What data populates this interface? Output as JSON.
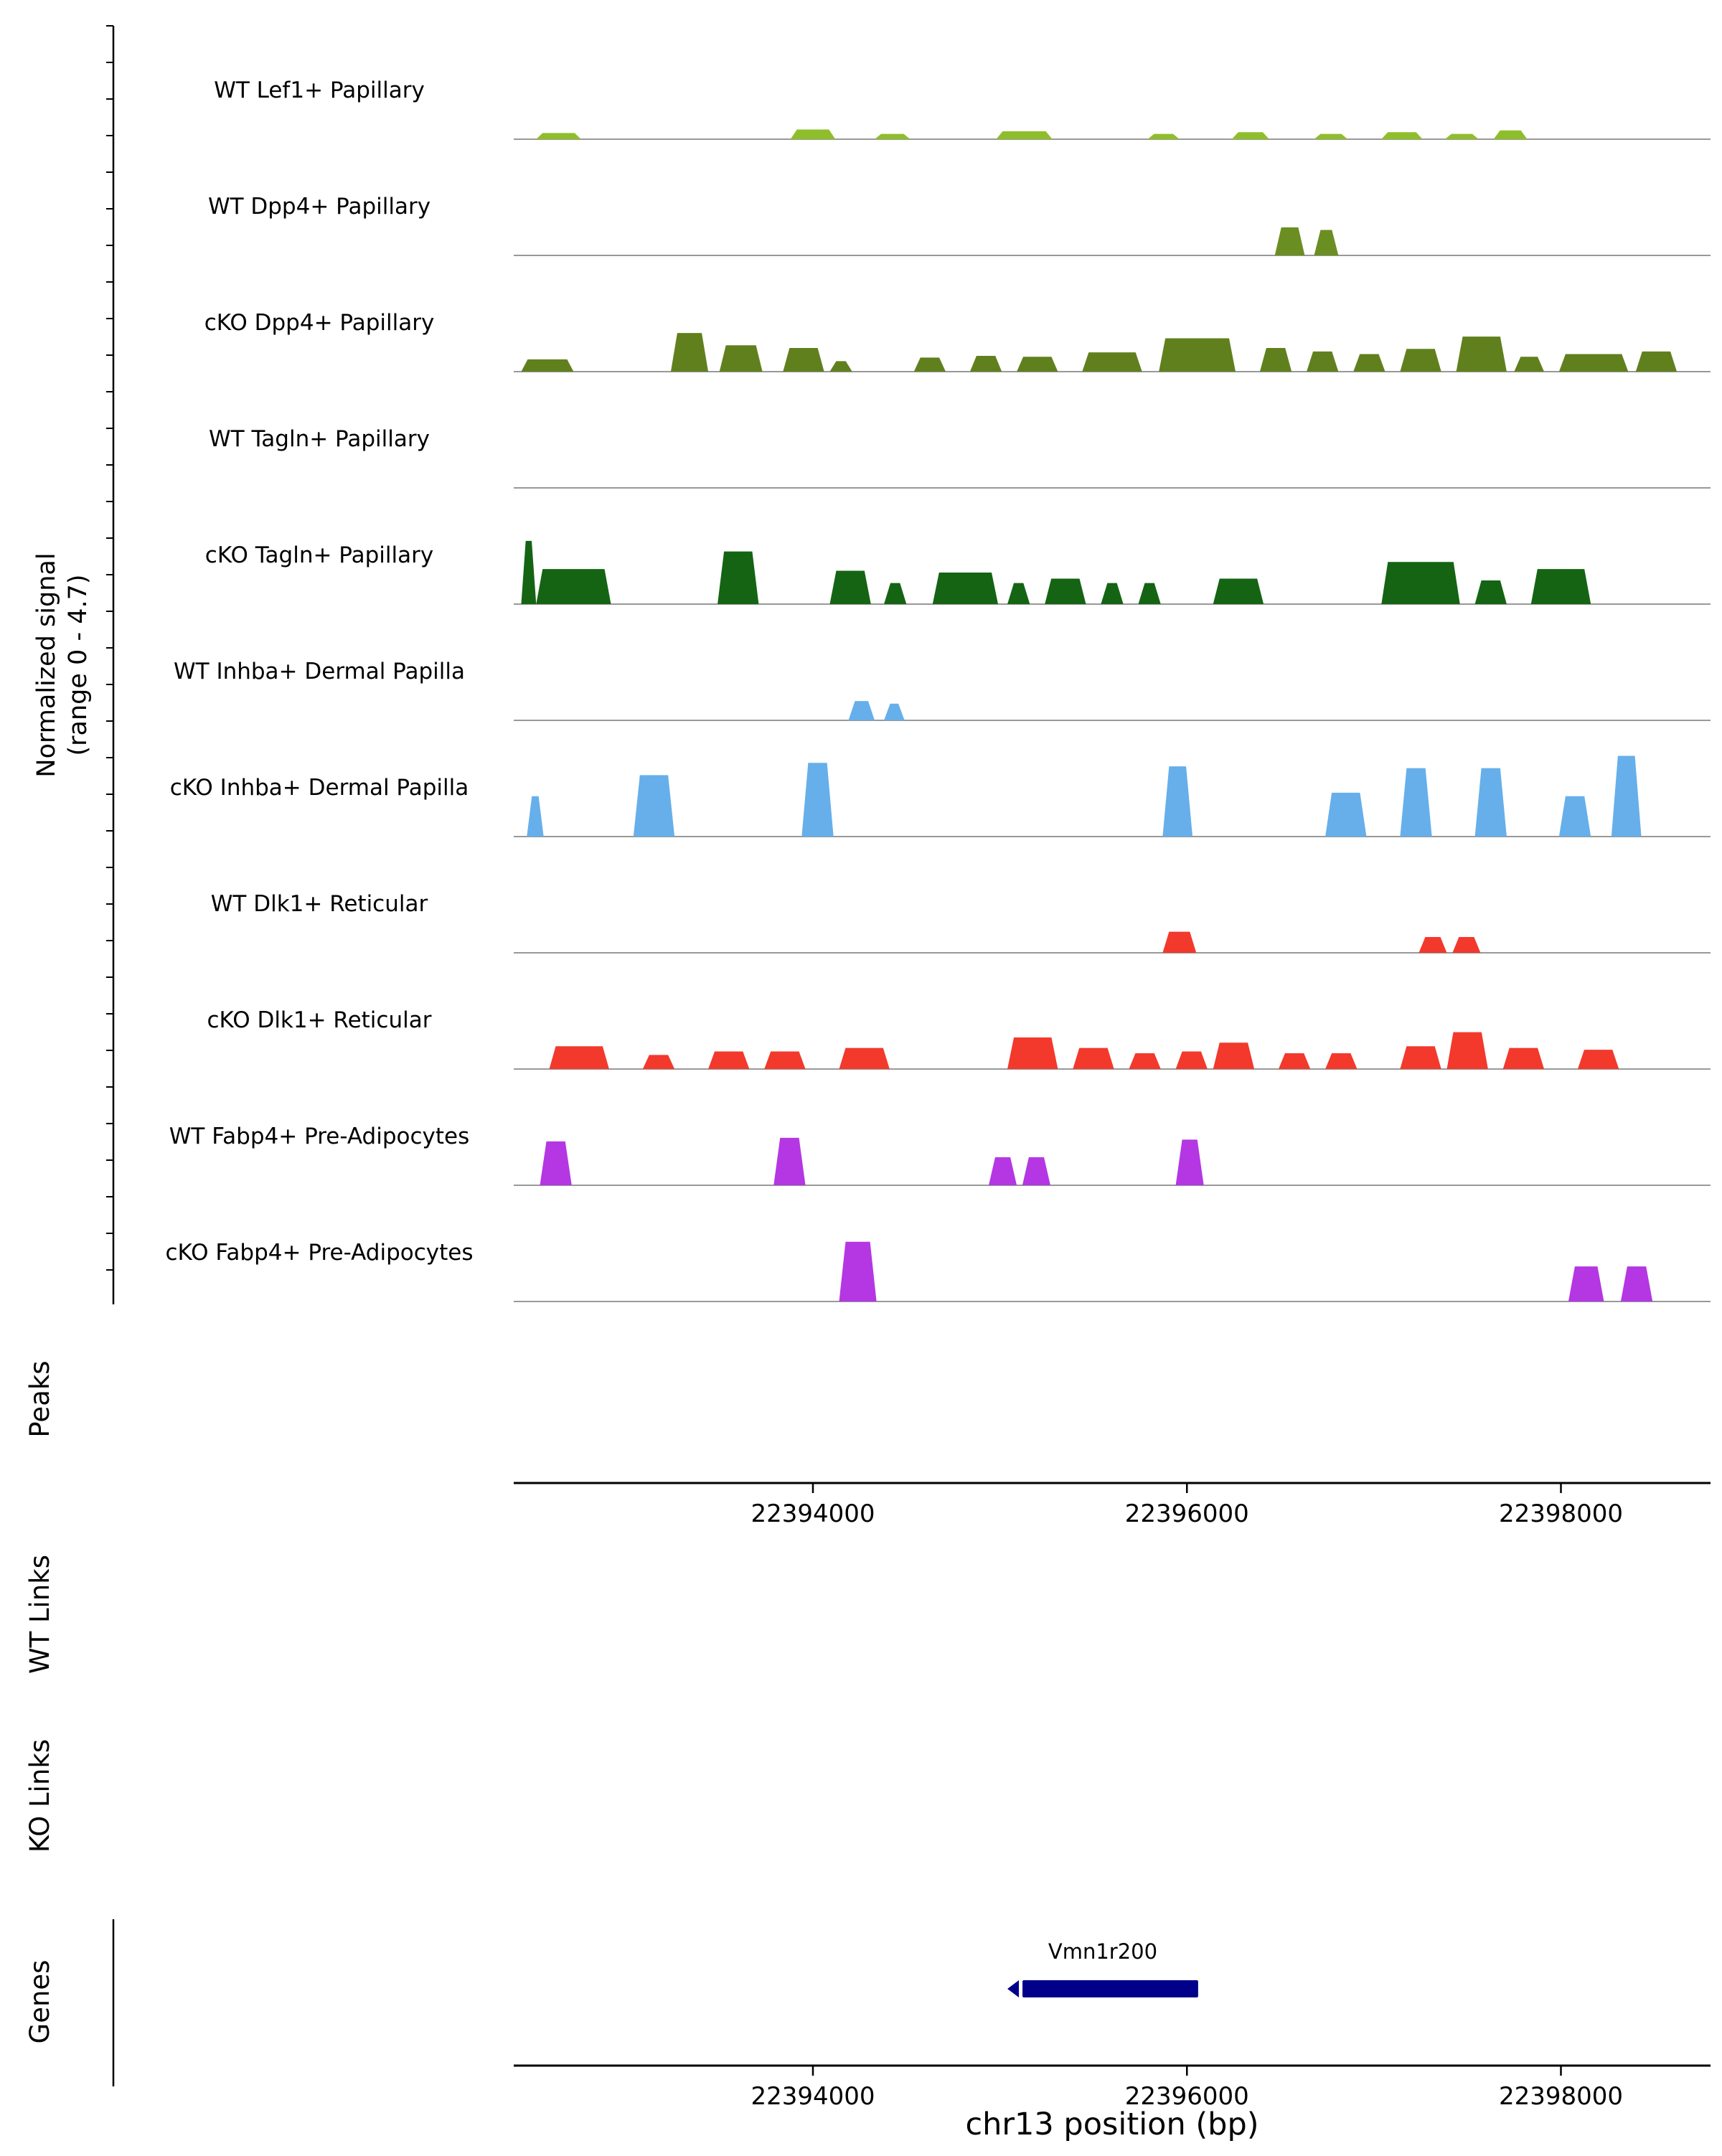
{
  "figure": {
    "y_axis_label_line1": "Normalized signal",
    "y_axis_label_line2": "(range 0 - 4.7)",
    "x_axis_label": "chr13 position (bp)",
    "section_labels": {
      "peaks": "Peaks",
      "wt_links": "WT Links",
      "ko_links": "KO Links",
      "genes": "Genes"
    }
  },
  "chart_data": {
    "type": "area",
    "title": "",
    "xlabel": "chr13 position (bp)",
    "ylabel": "Normalized signal (range 0 - 4.7)",
    "x_range": [
      22392400,
      22398800
    ],
    "x_ticks": [
      22394000,
      22396000,
      22398000
    ],
    "y_range_per_track": [
      0,
      4.7
    ],
    "grid": false,
    "tracks": [
      {
        "id": "wt-lef1-papillary",
        "name": "WT Lef1+ Papillary",
        "color": "#8FBE2B",
        "peaks": [
          [
            22392520,
            22392760,
            0.35
          ],
          [
            22393880,
            22394120,
            0.55
          ],
          [
            22394330,
            22394520,
            0.3
          ],
          [
            22394980,
            22395280,
            0.45
          ],
          [
            22395790,
            22395960,
            0.3
          ],
          [
            22396240,
            22396440,
            0.4
          ],
          [
            22396680,
            22396860,
            0.3
          ],
          [
            22397040,
            22397260,
            0.4
          ],
          [
            22397380,
            22397560,
            0.3
          ],
          [
            22397640,
            22397820,
            0.5
          ]
        ]
      },
      {
        "id": "wt-dpp4-papillary",
        "name": "WT Dpp4+ Papillary",
        "color": "#6B8E23",
        "peaks": [
          [
            22396470,
            22396630,
            1.6
          ],
          [
            22396680,
            22396810,
            1.45
          ]
        ]
      },
      {
        "id": "cko-dpp4-papillary",
        "name": "cKO Dpp4+ Papillary",
        "color": "#60801E",
        "peaks": [
          [
            22392440,
            22392720,
            0.7
          ],
          [
            22393240,
            22393440,
            2.2
          ],
          [
            22393500,
            22393730,
            1.5
          ],
          [
            22393840,
            22394060,
            1.35
          ],
          [
            22394090,
            22394210,
            0.6
          ],
          [
            22394540,
            22394710,
            0.8
          ],
          [
            22394840,
            22395010,
            0.9
          ],
          [
            22395090,
            22395310,
            0.85
          ],
          [
            22395440,
            22395760,
            1.1
          ],
          [
            22395850,
            22396260,
            1.9
          ],
          [
            22396390,
            22396560,
            1.35
          ],
          [
            22396640,
            22396810,
            1.15
          ],
          [
            22396890,
            22397060,
            1.0
          ],
          [
            22397140,
            22397360,
            1.3
          ],
          [
            22397440,
            22397710,
            2.0
          ],
          [
            22397750,
            22397910,
            0.85
          ],
          [
            22397990,
            22398360,
            1.0
          ],
          [
            22398400,
            22398620,
            1.15
          ]
        ]
      },
      {
        "id": "wt-tagln-papillary",
        "name": "WT Tagln+ Papillary",
        "color": "#146414",
        "peaks": []
      },
      {
        "id": "cko-tagln-papillary",
        "name": "cKO Tagln+ Papillary",
        "color": "#146414",
        "peaks": [
          [
            22392440,
            22392520,
            3.6
          ],
          [
            22392520,
            22392920,
            2.0
          ],
          [
            22393490,
            22393710,
            3.0
          ],
          [
            22394090,
            22394310,
            1.9
          ],
          [
            22394380,
            22394500,
            1.2
          ],
          [
            22394640,
            22394990,
            1.8
          ],
          [
            22395040,
            22395160,
            1.2
          ],
          [
            22395240,
            22395460,
            1.45
          ],
          [
            22395540,
            22395660,
            1.2
          ],
          [
            22395740,
            22395860,
            1.2
          ],
          [
            22396140,
            22396410,
            1.45
          ],
          [
            22397040,
            22397460,
            2.4
          ],
          [
            22397540,
            22397710,
            1.35
          ],
          [
            22397840,
            22398160,
            2.0
          ]
        ]
      },
      {
        "id": "wt-inhba-dermal-papilla",
        "name": "WT Inhba+ Dermal Papilla",
        "color": "#66AFEA",
        "peaks": [
          [
            22394190,
            22394330,
            1.1
          ],
          [
            22394380,
            22394490,
            0.95
          ]
        ]
      },
      {
        "id": "cko-inhba-dermal-papilla",
        "name": "cKO Inhba+ Dermal Papilla",
        "color": "#66AFEA",
        "peaks": [
          [
            22392470,
            22392560,
            2.3
          ],
          [
            22393040,
            22393260,
            3.5
          ],
          [
            22393940,
            22394110,
            4.2
          ],
          [
            22395870,
            22396030,
            4.0
          ],
          [
            22396740,
            22396960,
            2.5
          ],
          [
            22397140,
            22397310,
            3.9
          ],
          [
            22397540,
            22397710,
            3.9
          ],
          [
            22397990,
            22398160,
            2.3
          ],
          [
            22398270,
            22398430,
            4.6
          ]
        ]
      },
      {
        "id": "wt-dlk1-reticular",
        "name": "WT Dlk1+ Reticular",
        "color": "#F2392C",
        "peaks": [
          [
            22395870,
            22396050,
            1.2
          ],
          [
            22397240,
            22397390,
            0.9
          ],
          [
            22397420,
            22397570,
            0.9
          ]
        ]
      },
      {
        "id": "cko-dlk1-reticular",
        "name": "cKO Dlk1+ Reticular",
        "color": "#F2392C",
        "peaks": [
          [
            22392590,
            22392910,
            1.3
          ],
          [
            22393090,
            22393260,
            0.8
          ],
          [
            22393440,
            22393660,
            1.0
          ],
          [
            22393740,
            22393960,
            1.0
          ],
          [
            22394140,
            22394410,
            1.2
          ],
          [
            22395040,
            22395310,
            1.8
          ],
          [
            22395390,
            22395610,
            1.2
          ],
          [
            22395690,
            22395860,
            0.9
          ],
          [
            22395940,
            22396110,
            1.0
          ],
          [
            22396140,
            22396360,
            1.5
          ],
          [
            22396490,
            22396660,
            0.9
          ],
          [
            22396740,
            22396910,
            0.9
          ],
          [
            22397140,
            22397360,
            1.3
          ],
          [
            22397390,
            22397610,
            2.1
          ],
          [
            22397690,
            22397910,
            1.2
          ],
          [
            22398090,
            22398310,
            1.1
          ]
        ]
      },
      {
        "id": "wt-fabp4-pre-adipocytes",
        "name": "WT Fabp4+ Pre-Adipocytes",
        "color": "#B437E3",
        "peaks": [
          [
            22392540,
            22392710,
            2.5
          ],
          [
            22393790,
            22393960,
            2.7
          ],
          [
            22394940,
            22395090,
            1.6
          ],
          [
            22395120,
            22395270,
            1.6
          ],
          [
            22395940,
            22396090,
            2.6
          ]
        ]
      },
      {
        "id": "cko-fabp4-pre-adipocytes",
        "name": "cKO Fabp4+ Pre-Adipocytes",
        "color": "#B437E3",
        "peaks": [
          [
            22394140,
            22394340,
            3.4
          ],
          [
            22398040,
            22398230,
            2.0
          ],
          [
            22398320,
            22398490,
            2.0
          ]
        ]
      }
    ],
    "gene": {
      "name": "Vmn1r200",
      "start": 22395040,
      "end": 22396060,
      "strand": "-",
      "color": "#00008B"
    },
    "colors": {
      "baseline": "#999999",
      "axis": "#000000",
      "gene": "#00008B"
    }
  }
}
